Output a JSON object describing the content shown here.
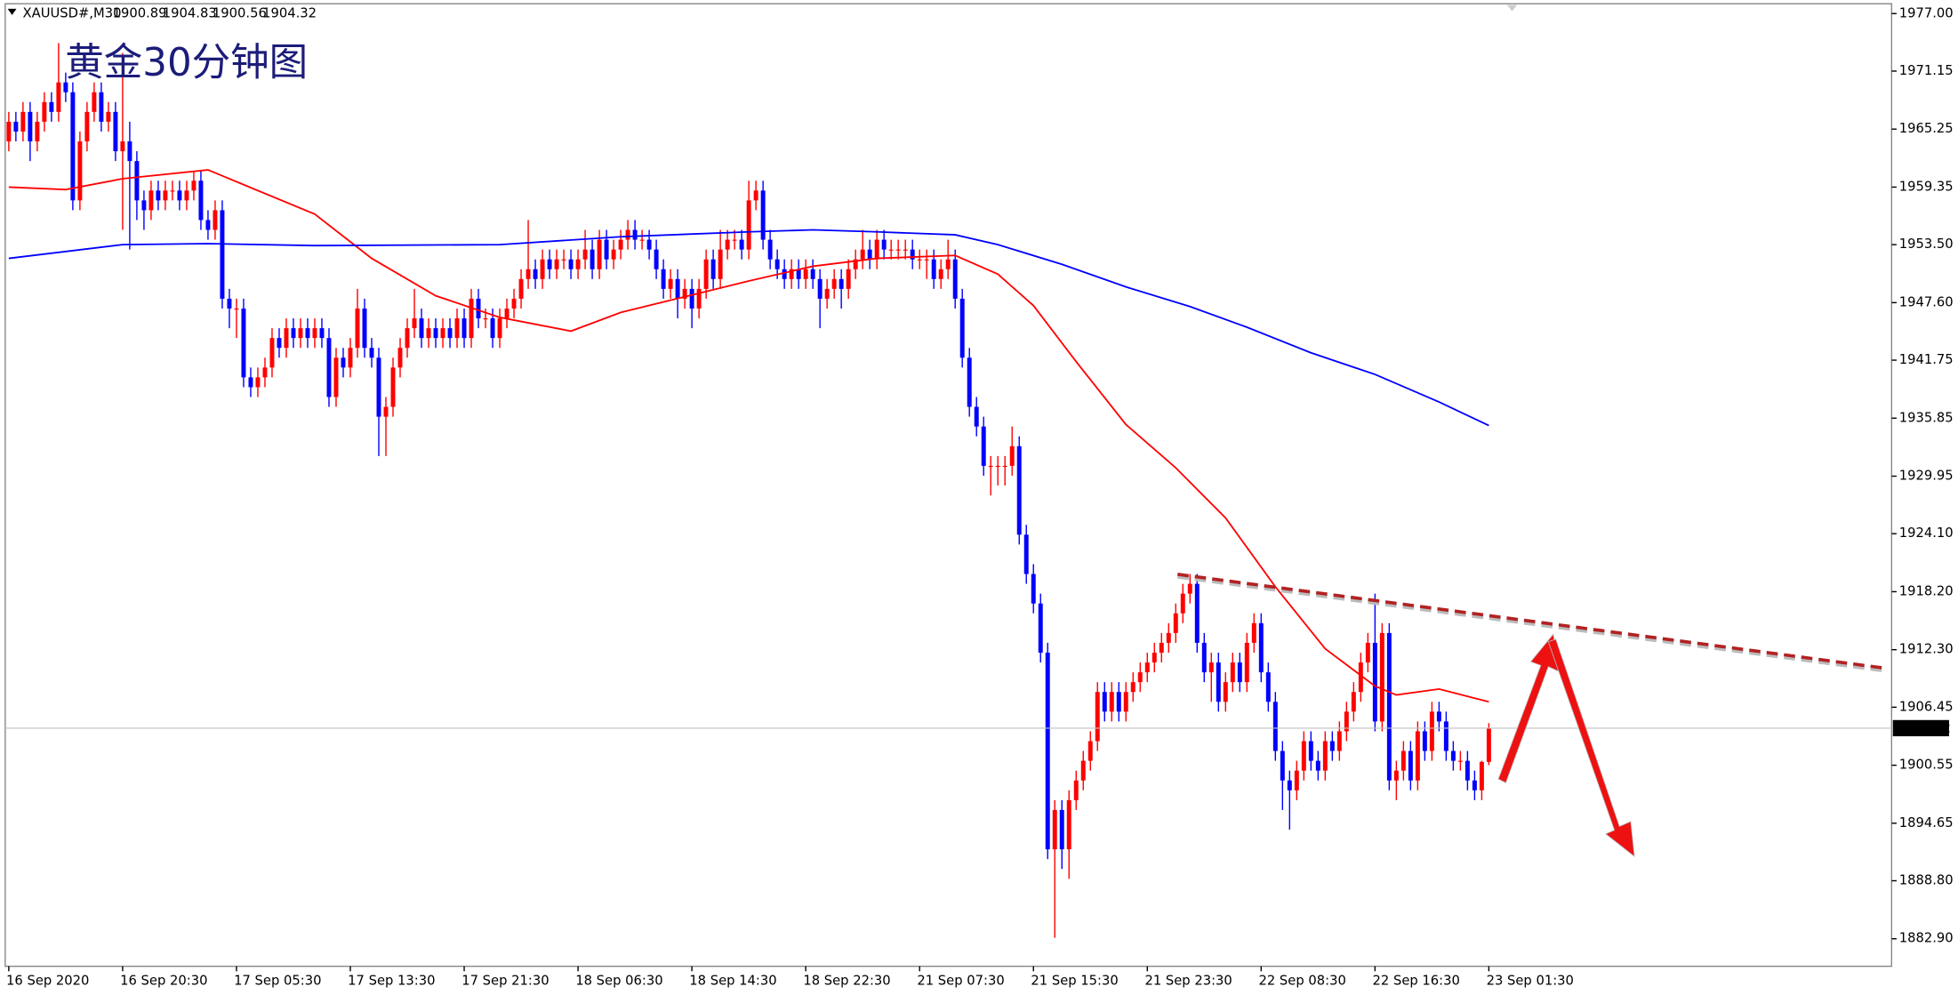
{
  "chart_data": {
    "type": "candlestick",
    "symbol": "XAUUSD#,M30",
    "title": "黄金30分钟图",
    "up_color": "#ff0000",
    "down_color": "#0000ff",
    "grid": false,
    "ylim": [
      1880.1,
      1978.0
    ],
    "yticks": [
      {
        "value": 1977,
        "label": "1977.00"
      },
      1971.15,
      1965.25,
      1959.35,
      {
        "value": 1953.5,
        "label": "1953.50"
      },
      {
        "value": 1947.6,
        "label": "1947.60"
      },
      1941.75,
      1935.85,
      1929.95,
      {
        "value": 1924.1,
        "label": "1924.10"
      },
      {
        "value": 1918.2,
        "label": "1918.20"
      },
      {
        "value": 1912.3,
        "label": "1912.30"
      },
      1906.45,
      1900.55,
      1894.65,
      {
        "value": 1888.8,
        "label": "1888.80"
      },
      {
        "value": 1882.9,
        "label": "1882.90"
      }
    ],
    "xlim": [
      -0.5,
      264.6
    ],
    "xticks": [
      {
        "value": 0,
        "label": "16 Sep 2020"
      },
      {
        "value": 16,
        "label": "16 Sep 20:30"
      },
      {
        "value": 32,
        "label": "17 Sep 05:30"
      },
      {
        "value": 48,
        "label": "17 Sep 13:30"
      },
      {
        "value": 64,
        "label": "17 Sep 21:30"
      },
      {
        "value": 80,
        "label": "18 Sep 06:30"
      },
      {
        "value": 96,
        "label": "18 Sep 14:30"
      },
      {
        "value": 112,
        "label": "18 Sep 22:30"
      },
      {
        "value": 128,
        "label": "21 Sep 07:30"
      },
      {
        "value": 144,
        "label": "21 Sep 15:30"
      },
      {
        "value": 160,
        "label": "21 Sep 23:30"
      },
      {
        "value": 176,
        "label": "22 Sep 08:30"
      },
      {
        "value": 192,
        "label": "22 Sep 16:30"
      },
      {
        "value": 208,
        "label": "23 Sep 01:30"
      }
    ],
    "candles": [
      [
        1964,
        1967,
        1963,
        1966
      ],
      [
        1966,
        1967,
        1964,
        1965
      ],
      [
        1965,
        1968,
        1964,
        1967
      ],
      [
        1967,
        1968,
        1962,
        1964
      ],
      [
        1964,
        1967,
        1963,
        1966
      ],
      [
        1966,
        1969,
        1965,
        1968
      ],
      [
        1968,
        1969,
        1966,
        1967
      ],
      [
        1967,
        1974,
        1966,
        1970
      ],
      [
        1970,
        1971,
        1968,
        1969
      ],
      [
        1969,
        1970,
        1957,
        1958
      ],
      [
        1958,
        1965,
        1957,
        1964
      ],
      [
        1964,
        1968,
        1963,
        1967
      ],
      [
        1967,
        1970,
        1966,
        1969
      ],
      [
        1969,
        1970,
        1965,
        1966
      ],
      [
        1966,
        1968,
        1965,
        1967
      ],
      [
        1967,
        1968,
        1962,
        1963
      ],
      [
        1963,
        1973,
        1955,
        1964
      ],
      [
        1964,
        1966,
        1953,
        1962
      ],
      [
        1962,
        1963,
        1956,
        1958
      ],
      [
        1958,
        1959,
        1955,
        1957
      ],
      [
        1957,
        1960,
        1956,
        1959
      ],
      [
        1959,
        1960,
        1957,
        1958
      ],
      [
        1958,
        1960,
        1957,
        1959
      ],
      [
        1959,
        1960,
        1958,
        1959
      ],
      [
        1959,
        1960,
        1957,
        1958
      ],
      [
        1958,
        1960,
        1957,
        1959
      ],
      [
        1959,
        1961,
        1958,
        1960
      ],
      [
        1960,
        1961,
        1955,
        1956
      ],
      [
        1956,
        1957,
        1954,
        1955
      ],
      [
        1955,
        1958,
        1954,
        1957
      ],
      [
        1957,
        1958,
        1947,
        1948
      ],
      [
        1948,
        1949,
        1945,
        1947
      ],
      [
        1947,
        1948,
        1944,
        1947
      ],
      [
        1947,
        1948,
        1939,
        1940
      ],
      [
        1940,
        1941,
        1938,
        1939
      ],
      [
        1939,
        1941,
        1938,
        1940
      ],
      [
        1940,
        1942,
        1939,
        1941
      ],
      [
        1941,
        1945,
        1940,
        1944
      ],
      [
        1944,
        1945,
        1942,
        1943
      ],
      [
        1943,
        1946,
        1942,
        1945
      ],
      [
        1945,
        1946,
        1943,
        1944
      ],
      [
        1944,
        1946,
        1943,
        1945
      ],
      [
        1945,
        1946,
        1943,
        1944
      ],
      [
        1944,
        1946,
        1943,
        1945
      ],
      [
        1945,
        1946,
        1943,
        1944
      ],
      [
        1944,
        1945,
        1937,
        1938
      ],
      [
        1938,
        1943,
        1937,
        1942
      ],
      [
        1942,
        1943,
        1940,
        1941
      ],
      [
        1941,
        1944,
        1940,
        1943
      ],
      [
        1943,
        1949,
        1942,
        1947
      ],
      [
        1947,
        1948,
        1942,
        1943
      ],
      [
        1943,
        1944,
        1941,
        1942
      ],
      [
        1942,
        1943,
        1932,
        1936
      ],
      [
        1936,
        1938,
        1932,
        1937
      ],
      [
        1937,
        1942,
        1936,
        1941
      ],
      [
        1941,
        1944,
        1940,
        1943
      ],
      [
        1943,
        1946,
        1942,
        1945
      ],
      [
        1945,
        1949,
        1944,
        1946
      ],
      [
        1946,
        1947,
        1943,
        1944
      ],
      [
        1944,
        1946,
        1943,
        1945
      ],
      [
        1945,
        1946,
        1943,
        1944
      ],
      [
        1944,
        1946,
        1943,
        1945
      ],
      [
        1945,
        1946,
        1943,
        1944
      ],
      [
        1944,
        1947,
        1943,
        1946
      ],
      [
        1946,
        1947,
        1943,
        1944
      ],
      [
        1944,
        1949,
        1943,
        1948
      ],
      [
        1948,
        1949,
        1945,
        1946
      ],
      [
        1946,
        1947,
        1945,
        1946
      ],
      [
        1946,
        1947,
        1943,
        1944
      ],
      [
        1944,
        1947,
        1943,
        1946
      ],
      [
        1946,
        1948,
        1945,
        1947
      ],
      [
        1947,
        1949,
        1946,
        1948
      ],
      [
        1948,
        1951,
        1947,
        1950
      ],
      [
        1950,
        1956,
        1949,
        1951
      ],
      [
        1951,
        1952,
        1949,
        1950
      ],
      [
        1950,
        1953,
        1949,
        1952
      ],
      [
        1952,
        1953,
        1950,
        1951
      ],
      [
        1951,
        1953,
        1950,
        1952
      ],
      [
        1952,
        1953,
        1951,
        1952
      ],
      [
        1952,
        1953,
        1950,
        1951
      ],
      [
        1951,
        1953,
        1950,
        1952
      ],
      [
        1952,
        1955,
        1951,
        1953
      ],
      [
        1953,
        1954,
        1950,
        1951
      ],
      [
        1951,
        1955,
        1950,
        1954
      ],
      [
        1954,
        1955,
        1951,
        1952
      ],
      [
        1952,
        1954,
        1951,
        1953
      ],
      [
        1953,
        1955,
        1952,
        1954
      ],
      [
        1954,
        1956,
        1953,
        1955
      ],
      [
        1955,
        1956,
        1953,
        1954
      ],
      [
        1954,
        1955,
        1953,
        1954
      ],
      [
        1954,
        1955,
        1952,
        1953
      ],
      [
        1953,
        1954,
        1950,
        1951
      ],
      [
        1951,
        1952,
        1948,
        1949
      ],
      [
        1949,
        1951,
        1948,
        1950
      ],
      [
        1950,
        1951,
        1946,
        1948
      ],
      [
        1948,
        1950,
        1947,
        1949
      ],
      [
        1949,
        1950,
        1945,
        1947
      ],
      [
        1947,
        1950,
        1946,
        1949
      ],
      [
        1949,
        1953,
        1948,
        1952
      ],
      [
        1952,
        1953,
        1949,
        1950
      ],
      [
        1950,
        1955,
        1949,
        1953
      ],
      [
        1953,
        1955,
        1952,
        1954
      ],
      [
        1954,
        1955,
        1953,
        1954
      ],
      [
        1954,
        1955,
        1952,
        1953
      ],
      [
        1953,
        1960,
        1952,
        1958
      ],
      [
        1958,
        1960,
        1957,
        1959
      ],
      [
        1959,
        1960,
        1953,
        1954
      ],
      [
        1954,
        1955,
        1951,
        1952
      ],
      [
        1952,
        1953,
        1950,
        1951
      ],
      [
        1951,
        1952,
        1949,
        1950
      ],
      [
        1950,
        1952,
        1949,
        1951
      ],
      [
        1951,
        1952,
        1949,
        1950
      ],
      [
        1950,
        1952,
        1949,
        1951
      ],
      [
        1951,
        1952,
        1949,
        1950
      ],
      [
        1950,
        1951,
        1945,
        1948
      ],
      [
        1948,
        1950,
        1947,
        1949
      ],
      [
        1949,
        1951,
        1948,
        1950
      ],
      [
        1950,
        1951,
        1947,
        1949
      ],
      [
        1949,
        1952,
        1948,
        1951
      ],
      [
        1951,
        1953,
        1950,
        1952
      ],
      [
        1952,
        1955,
        1951,
        1953
      ],
      [
        1953,
        1954,
        1951,
        1952
      ],
      [
        1952,
        1955,
        1951,
        1954
      ],
      [
        1954,
        1955,
        1952,
        1953
      ],
      [
        1953,
        1954,
        1952,
        1953
      ],
      [
        1953,
        1954,
        1952,
        1953
      ],
      [
        1953,
        1954,
        1952,
        1953
      ],
      [
        1953,
        1954,
        1951,
        1952
      ],
      [
        1952,
        1953,
        1951,
        1952
      ],
      [
        1952,
        1953,
        1950,
        1952
      ],
      [
        1952,
        1953,
        1949,
        1950
      ],
      [
        1950,
        1952,
        1949,
        1951
      ],
      [
        1951,
        1954,
        1950,
        1952
      ],
      [
        1952,
        1953,
        1947,
        1948
      ],
      [
        1948,
        1949,
        1941,
        1942
      ],
      [
        1942,
        1943,
        1936,
        1937
      ],
      [
        1937,
        1938,
        1934,
        1935
      ],
      [
        1935,
        1936,
        1930,
        1931
      ],
      [
        1931,
        1932,
        1928,
        1931
      ],
      [
        1931,
        1932,
        1929,
        1931
      ],
      [
        1931,
        1932,
        1929,
        1931
      ],
      [
        1931,
        1935,
        1930,
        1933
      ],
      [
        1933,
        1934,
        1923,
        1924
      ],
      [
        1924,
        1925,
        1919,
        1920
      ],
      [
        1920,
        1921,
        1916,
        1917
      ],
      [
        1917,
        1918,
        1911,
        1912
      ],
      [
        1912,
        1913,
        1891,
        1892
      ],
      [
        1892,
        1897,
        1883,
        1896
      ],
      [
        1896,
        1897,
        1890,
        1892
      ],
      [
        1892,
        1898,
        1889,
        1897
      ],
      [
        1897,
        1900,
        1896,
        1899
      ],
      [
        1899,
        1902,
        1898,
        1901
      ],
      [
        1901,
        1904,
        1900,
        1903
      ],
      [
        1903,
        1909,
        1902,
        1908
      ],
      [
        1908,
        1909,
        1905,
        1906
      ],
      [
        1906,
        1909,
        1905,
        1908
      ],
      [
        1908,
        1909,
        1905,
        1906
      ],
      [
        1906,
        1909,
        1905,
        1908
      ],
      [
        1908,
        1910,
        1907,
        1909
      ],
      [
        1909,
        1911,
        1908,
        1910
      ],
      [
        1910,
        1912,
        1909,
        1911
      ],
      [
        1911,
        1913,
        1910,
        1912
      ],
      [
        1912,
        1914,
        1911,
        1913
      ],
      [
        1913,
        1915,
        1912,
        1914
      ],
      [
        1914,
        1917,
        1913,
        1916
      ],
      [
        1916,
        1919,
        1915,
        1918
      ],
      [
        1918,
        1920,
        1917,
        1919
      ],
      [
        1919,
        1920,
        1912,
        1913
      ],
      [
        1913,
        1914,
        1909,
        1910
      ],
      [
        1910,
        1912,
        1907,
        1911
      ],
      [
        1911,
        1912,
        1906,
        1907
      ],
      [
        1907,
        1910,
        1906,
        1909
      ],
      [
        1909,
        1912,
        1908,
        1911
      ],
      [
        1911,
        1912,
        1908,
        1909
      ],
      [
        1909,
        1914,
        1908,
        1913
      ],
      [
        1913,
        1916,
        1912,
        1915
      ],
      [
        1915,
        1916,
        1909,
        1910
      ],
      [
        1910,
        1911,
        1906,
        1907
      ],
      [
        1907,
        1908,
        1901,
        1902
      ],
      [
        1902,
        1903,
        1896,
        1899
      ],
      [
        1899,
        1900,
        1894,
        1898
      ],
      [
        1898,
        1901,
        1897,
        1900
      ],
      [
        1900,
        1904,
        1899,
        1903
      ],
      [
        1903,
        1904,
        1900,
        1901
      ],
      [
        1901,
        1902,
        1899,
        1900
      ],
      [
        1900,
        1904,
        1899,
        1903
      ],
      [
        1903,
        1904,
        1901,
        1902
      ],
      [
        1902,
        1905,
        1901,
        1904
      ],
      [
        1904,
        1907,
        1903,
        1906
      ],
      [
        1906,
        1909,
        1905,
        1908
      ],
      [
        1908,
        1912,
        1907,
        1911
      ],
      [
        1911,
        1914,
        1910,
        1913
      ],
      [
        1913,
        1918,
        1904,
        1905
      ],
      [
        1905,
        1915,
        1904,
        1914
      ],
      [
        1914,
        1915,
        1898,
        1899
      ],
      [
        1899,
        1901,
        1897,
        1900
      ],
      [
        1900,
        1903,
        1899,
        1902
      ],
      [
        1902,
        1903,
        1898,
        1899
      ],
      [
        1899,
        1905,
        1898,
        1904
      ],
      [
        1904,
        1905,
        1901,
        1902
      ],
      [
        1902,
        1907,
        1901,
        1906
      ],
      [
        1906,
        1907,
        1904,
        1905
      ],
      [
        1905,
        1906,
        1901,
        1902
      ],
      [
        1902,
        1903,
        1900,
        1901
      ],
      [
        1901,
        1902,
        1900,
        1901
      ],
      [
        1901,
        1902,
        1898,
        1899
      ],
      [
        1899,
        1900,
        1897,
        1898
      ],
      [
        1898,
        1901,
        1897,
        1900.89
      ],
      [
        1900.89,
        1904.83,
        1900.56,
        1904.32
      ]
    ],
    "ma_lines": [
      {
        "color": "#ff0000",
        "x": [
          0,
          8,
          16,
          28,
          34,
          43,
          51,
          60,
          69,
          79,
          86,
          95,
          104,
          113,
          122,
          133,
          139,
          144,
          150,
          157,
          164,
          171,
          178,
          185,
          192,
          195,
          201,
          208
        ],
        "values": [
          1959.35,
          1959.1,
          1960.2,
          1961.1,
          1959.3,
          1956.6,
          1952.1,
          1948.3,
          1946.1,
          1944.7,
          1946.6,
          1948.2,
          1949.8,
          1951.3,
          1952.1,
          1952.4,
          1950.5,
          1947.3,
          1941.6,
          1935.2,
          1930.8,
          1925.7,
          1918.7,
          1912.4,
          1908.6,
          1907.7,
          1908.3,
          1907.0
        ]
      },
      {
        "color": "#0000ff",
        "x": [
          0,
          16,
          28,
          43,
          69,
          86,
          104,
          113,
          122,
          133,
          139,
          148,
          157,
          166,
          174,
          183,
          192,
          201,
          208
        ],
        "values": [
          1952.1,
          1953.5,
          1953.6,
          1953.4,
          1953.5,
          1954.3,
          1954.8,
          1955.0,
          1954.8,
          1954.5,
          1953.5,
          1951.5,
          1949.2,
          1947.2,
          1945.1,
          1942.5,
          1940.3,
          1937.5,
          1935.1
        ]
      }
    ]
  }
}
